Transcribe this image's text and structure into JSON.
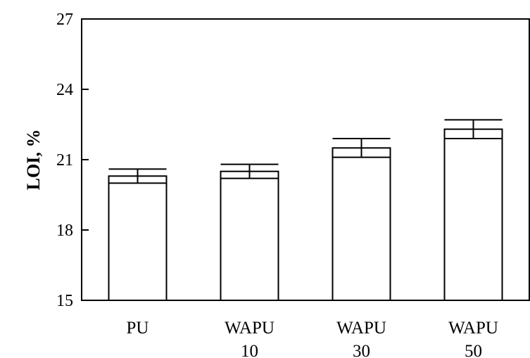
{
  "chart_data": {
    "type": "bar",
    "title": "",
    "xlabel": "",
    "ylabel": "LOI, %",
    "ylim": [
      15,
      27
    ],
    "yticks": [
      15,
      18,
      21,
      24,
      27
    ],
    "grid": false,
    "legend": "none",
    "categories": [
      [
        "PU"
      ],
      [
        "WAPU",
        "10"
      ],
      [
        "WAPU",
        "30"
      ],
      [
        "WAPU",
        "50"
      ]
    ],
    "values": [
      20.3,
      20.5,
      21.5,
      22.3
    ],
    "errors": [
      0.3,
      0.3,
      0.4,
      0.4
    ],
    "bar_fill": "#ffffff",
    "bar_stroke": "#000000"
  }
}
